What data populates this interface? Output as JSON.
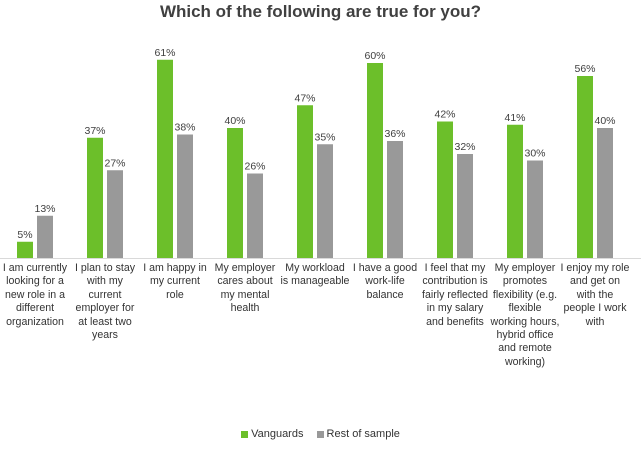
{
  "chart_data": {
    "type": "bar",
    "title": "Which of the following are true for you?",
    "xlabel": "",
    "ylabel": "",
    "ylim": [
      0,
      65
    ],
    "grid": false,
    "legend_position": "bottom-center",
    "categories": [
      "I am currently looking for a new role in a different organization",
      "I plan to stay with my current employer for at least two years",
      "I am happy in my current role",
      "My employer cares about my mental health",
      "My workload is manageable",
      "I have a good work-life balance",
      "I feel that my contribution is fairly reflected in my salary and benefits",
      "My employer promotes flexibility (e.g. flexible working hours, hybrid office and remote working)",
      "I enjoy my role and get on with the people I work with"
    ],
    "series": [
      {
        "name": "Vanguards",
        "color": "#6cbf2a",
        "values": [
          5,
          37,
          61,
          40,
          47,
          60,
          42,
          41,
          56
        ]
      },
      {
        "name": "Rest of sample",
        "color": "#999999",
        "values": [
          13,
          27,
          38,
          26,
          35,
          36,
          32,
          30,
          40
        ]
      }
    ],
    "value_labels": [
      [
        "5%",
        "37%",
        "61%",
        "40%",
        "47%",
        "60%",
        "42%",
        "41%",
        "56%"
      ],
      [
        "13%",
        "27%",
        "38%",
        "26%",
        "35%",
        "36%",
        "32%",
        "30%",
        "40%"
      ]
    ]
  }
}
